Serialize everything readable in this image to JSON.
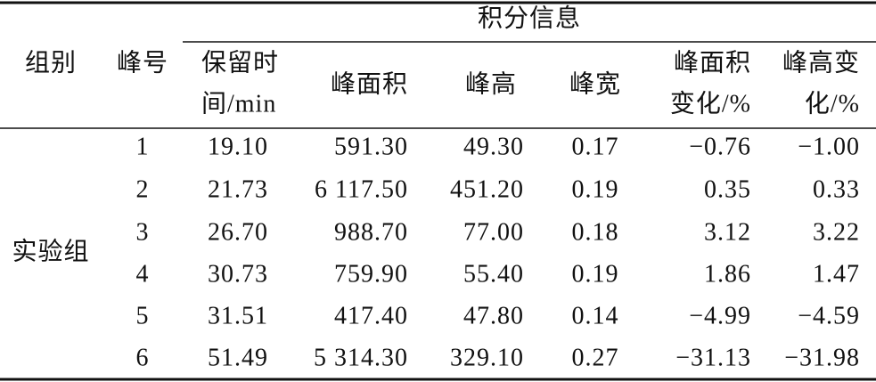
{
  "table": {
    "group_header": "积分信息",
    "columns": [
      [
        "组别"
      ],
      [
        "峰号"
      ],
      [
        "保留时",
        "间/min"
      ],
      [
        "峰面积"
      ],
      [
        "峰高"
      ],
      [
        "峰宽"
      ],
      [
        "峰面积",
        "变化/%"
      ],
      [
        "峰高变",
        "化/%"
      ]
    ],
    "group": "实验组",
    "rows": [
      [
        "1",
        "19.10",
        "591.30",
        "49.30",
        "0.17",
        "−0.76",
        "−1.00"
      ],
      [
        "2",
        "21.73",
        "6 117.50",
        "451.20",
        "0.19",
        "0.35",
        "0.33"
      ],
      [
        "3",
        "26.70",
        "988.70",
        "77.00",
        "0.18",
        "3.12",
        "3.22"
      ],
      [
        "4",
        "30.73",
        "759.90",
        "55.40",
        "0.19",
        "1.86",
        "1.47"
      ],
      [
        "5",
        "31.51",
        "417.40",
        "47.80",
        "0.14",
        "−4.99",
        "−4.59"
      ],
      [
        "6",
        "51.49",
        "5 314.30",
        "329.10",
        "0.27",
        "−31.13",
        "−31.98"
      ]
    ]
  }
}
